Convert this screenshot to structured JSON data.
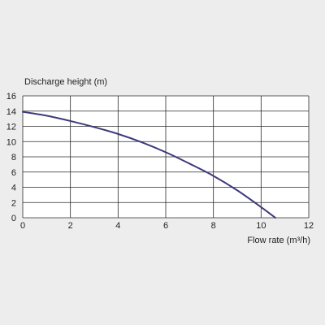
{
  "colors": {
    "background": "#ededed",
    "plot_background": "#ffffff",
    "grid": "#2b2b2b",
    "curve": "#3d3a7a",
    "text": "#1f1f1f"
  },
  "chart_data": {
    "type": "line",
    "title": "",
    "xlabel": "Flow rate (m³/h)",
    "ylabel": "Discharge height (m)",
    "xlim": [
      0,
      12
    ],
    "ylim": [
      0,
      16
    ],
    "x_ticks": [
      0,
      2,
      4,
      6,
      8,
      10,
      12
    ],
    "y_ticks": [
      0,
      2,
      4,
      6,
      8,
      10,
      12,
      14,
      16
    ],
    "x_tick_labels": [
      "0",
      "2",
      "4",
      "6",
      "8",
      "10",
      "12"
    ],
    "y_tick_labels": [
      "0",
      "2",
      "4",
      "6",
      "8",
      "10",
      "12",
      "14",
      "16"
    ],
    "grid": true,
    "legend": "none",
    "series": [
      {
        "x": [
          0,
          1,
          2,
          3,
          4,
          5,
          6,
          7,
          8,
          9,
          10,
          10.6
        ],
        "y": [
          13.9,
          13.4,
          12.7,
          11.9,
          11.0,
          9.9,
          8.6,
          7.1,
          5.5,
          3.6,
          1.4,
          0
        ]
      }
    ]
  }
}
